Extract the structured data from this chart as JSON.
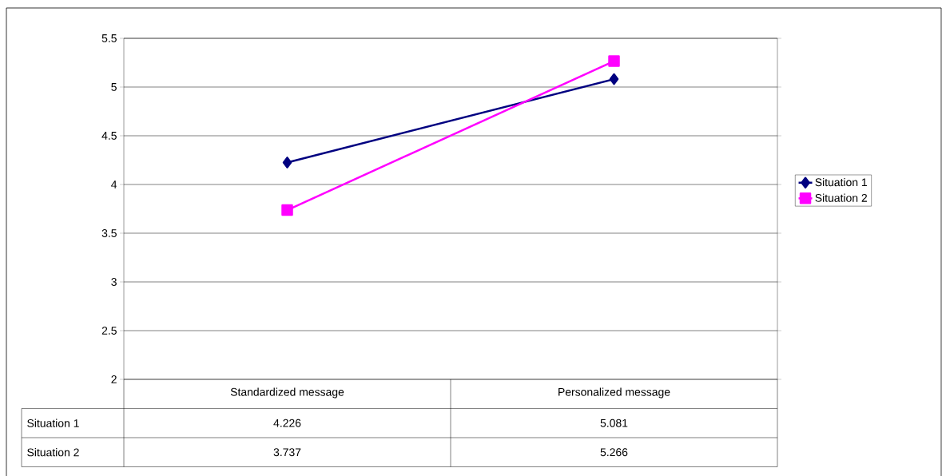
{
  "chart_data": {
    "type": "line",
    "categories": [
      "Standardized message",
      "Personalized message"
    ],
    "series": [
      {
        "name": "Situation 1",
        "color": "#000080",
        "marker": "diamond",
        "values": [
          4.226,
          5.081
        ]
      },
      {
        "name": "Situation 2",
        "color": "#ff00ff",
        "marker": "square",
        "values": [
          3.737,
          5.266
        ]
      }
    ],
    "ylim": [
      2,
      5.5
    ],
    "yticks": [
      2,
      2.5,
      3,
      3.5,
      4,
      4.5,
      5,
      5.5
    ],
    "grid": "y",
    "legend": "right",
    "data_labels": true,
    "line_style": "solid"
  }
}
